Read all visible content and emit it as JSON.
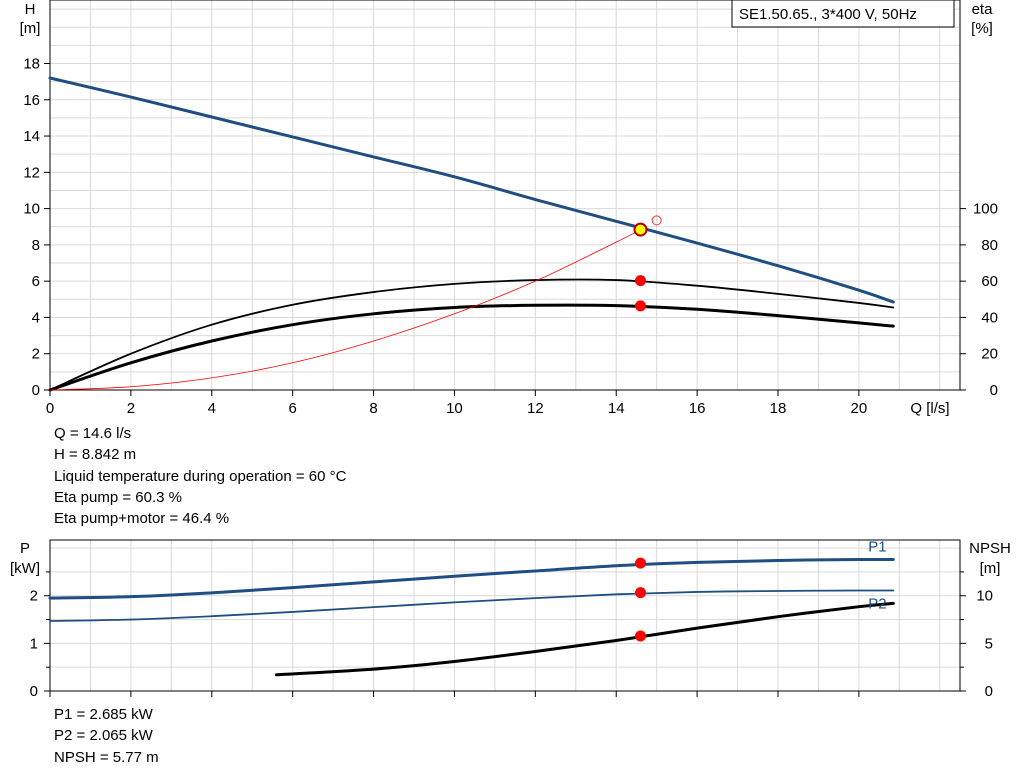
{
  "chart_data": [
    {
      "type": "line",
      "title": "SE1.50.65., 3*400 V, 50Hz",
      "xlabel": "Q [l/s]",
      "x_axis_label": "Q [l/s]",
      "ylabel_left": [
        "H",
        "[m]"
      ],
      "ylabel_right": [
        "eta",
        "[%]"
      ],
      "xlim": [
        0,
        22.5
      ],
      "ylim_left": [
        0,
        21.5
      ],
      "ylim_right": [
        0,
        215
      ],
      "x_ticks": [
        "0",
        "2",
        "4",
        "6",
        "8",
        "10",
        "12",
        "14",
        "16",
        "18",
        "20"
      ],
      "y_ticks_left": [
        "0",
        "2",
        "4",
        "6",
        "8",
        "10",
        "12",
        "14",
        "16",
        "18"
      ],
      "y_ticks_right": [
        "0",
        "20",
        "40",
        "60",
        "80",
        "100"
      ],
      "grid": true,
      "series": [
        {
          "axis": "left",
          "color": "#1f4e82",
          "x": [
            0,
            2,
            4,
            6,
            8,
            10,
            12,
            14,
            16,
            18,
            20,
            20.85
          ],
          "values": [
            17.2,
            16.15,
            15.05,
            13.95,
            12.85,
            11.75,
            10.5,
            9.3,
            8.1,
            6.85,
            5.5,
            4.85
          ]
        },
        {
          "axis": "right",
          "color": "#000000",
          "x": [
            0,
            2,
            4,
            6,
            8,
            10,
            12,
            14,
            16,
            18,
            20,
            20.85
          ],
          "values": [
            0,
            20,
            36,
            47,
            54,
            58.5,
            60.6,
            60.6,
            57.5,
            53,
            48,
            45.5
          ]
        },
        {
          "axis": "right",
          "color": "#000000",
          "x": [
            0,
            2,
            4,
            6,
            8,
            10,
            12,
            14,
            16,
            18,
            20,
            20.85
          ],
          "values": [
            0,
            15,
            27,
            36,
            42,
            45.5,
            46.7,
            46.5,
            44.5,
            41,
            37,
            35.2
          ]
        },
        {
          "axis": "left",
          "color": "#ff0000",
          "x": [
            0,
            2,
            4,
            6,
            8,
            10,
            12,
            14,
            14.6
          ],
          "values": [
            0,
            0.18,
            0.67,
            1.5,
            2.7,
            4.2,
            6.0,
            8.15,
            8.84
          ]
        }
      ],
      "operating_point": {
        "x": 14.6,
        "values": [
          8.842,
          60.3,
          46.4
        ]
      },
      "design_point": {
        "x": 15.0,
        "value": 9.35
      },
      "annotations": [
        "Q = 14.6 l/s",
        "H = 8.842 m",
        "Liquid temperature during operation = 60 °C",
        "Eta pump = 60.3 %",
        "Eta pump+motor = 46.4 %"
      ]
    },
    {
      "type": "line",
      "ylabel_left": [
        "P",
        "[kW]"
      ],
      "ylabel_right": [
        "NPSH",
        "[m]"
      ],
      "xlim": [
        0,
        22.5
      ],
      "ylim_left": [
        0,
        3.17
      ],
      "ylim_right": [
        0,
        15.85
      ],
      "y_ticks_left": [
        "0",
        "1",
        "2"
      ],
      "y_ticks_right": [
        "0",
        "5",
        "10"
      ],
      "grid": true,
      "series": [
        {
          "name": "P1",
          "axis": "left",
          "color": "#1f4e82",
          "x": [
            0,
            2,
            4,
            6,
            8,
            10,
            12,
            14,
            16,
            18,
            20,
            20.85
          ],
          "values": [
            1.95,
            1.98,
            2.06,
            2.17,
            2.29,
            2.41,
            2.52,
            2.63,
            2.7,
            2.74,
            2.76,
            2.76
          ]
        },
        {
          "name": "P2",
          "axis": "left",
          "color": "#1f4e82",
          "x": [
            0,
            2,
            4,
            6,
            8,
            10,
            12,
            14,
            16,
            18,
            20,
            20.85
          ],
          "values": [
            1.47,
            1.5,
            1.57,
            1.66,
            1.76,
            1.86,
            1.95,
            2.03,
            2.08,
            2.1,
            2.11,
            2.11
          ]
        },
        {
          "axis": "right",
          "color": "#000000",
          "x": [
            5.6,
            8,
            10,
            12,
            14,
            16,
            18,
            20,
            20.85
          ],
          "values": [
            1.7,
            2.3,
            3.1,
            4.15,
            5.3,
            6.6,
            7.8,
            8.85,
            9.2
          ]
        }
      ],
      "operating_point": {
        "x": 14.6,
        "values": [
          2.685,
          2.065,
          5.77
        ]
      },
      "annotations": [
        "P1 = 2.685 kW",
        "P2 = 2.065 kW",
        "NPSH = 5.77 m"
      ]
    }
  ]
}
